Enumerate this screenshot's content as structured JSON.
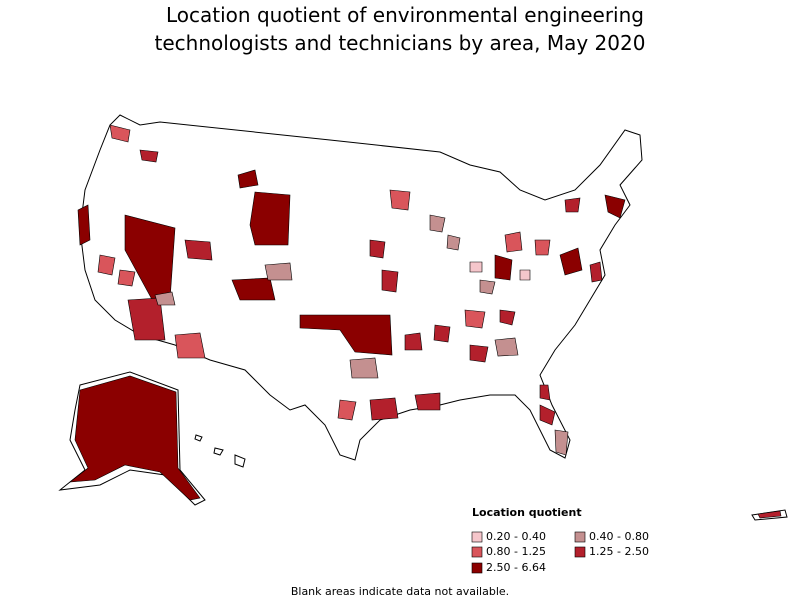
{
  "title_lines": [
    "Location quotient of environmental engineering",
    "technologists and technicians by area, May 2020"
  ],
  "legend": {
    "title": "Location quotient",
    "items": [
      {
        "label": "0.20 - 0.40",
        "color": "#f5c6cb"
      },
      {
        "label": "0.40 - 0.80",
        "color": "#c49090"
      },
      {
        "label": "0.80 - 1.25",
        "color": "#d9555b"
      },
      {
        "label": "1.25 - 2.50",
        "color": "#b3202c"
      },
      {
        "label": "2.50 - 6.64",
        "color": "#8b0000"
      }
    ]
  },
  "footnote": "Blank areas indicate data not available."
}
